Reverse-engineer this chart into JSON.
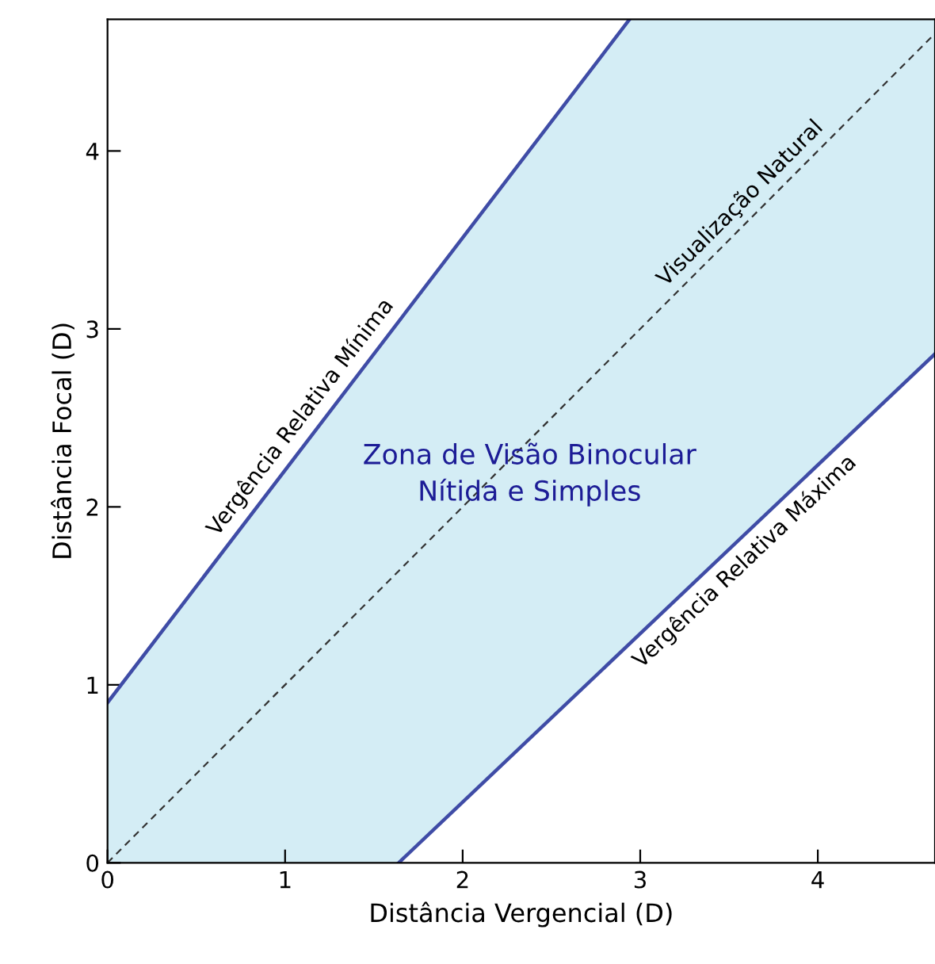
{
  "chart_data": {
    "type": "line",
    "xlabel": "Distância Vergencial (D)",
    "ylabel": "Distância Focal (D)",
    "xlim": [
      0,
      4.66
    ],
    "ylim": [
      0,
      4.74
    ],
    "xticks": [
      0,
      1,
      2,
      3,
      4
    ],
    "yticks": [
      0,
      1,
      2,
      3,
      4
    ],
    "grid": false,
    "legend": false,
    "annotations": [
      "Zona de Visão Binocular\nNítida e Simples"
    ],
    "series": [
      {
        "name": "Vergência Relativa Mínima",
        "color": "#3f4ca6",
        "x": [
          0,
          2.94
        ],
        "values": [
          0.9,
          4.74
        ],
        "line_style": "solid"
      },
      {
        "name": "Visualização Natural",
        "color": "#333333",
        "x": [
          0,
          1.64,
          2.94,
          4.66
        ],
        "values": [
          0,
          1.64,
          2.94,
          4.66
        ],
        "line_style": "dashed",
        "lower": [
          0,
          0,
          1.23,
          2.86
        ],
        "upper": [
          0.9,
          3.05,
          4.74,
          4.74
        ]
      },
      {
        "name": "Vergência Relativa Máxima",
        "color": "#3f4ca6",
        "x": [
          1.64,
          4.66
        ],
        "values": [
          0,
          2.86
        ],
        "line_style": "solid"
      }
    ]
  }
}
